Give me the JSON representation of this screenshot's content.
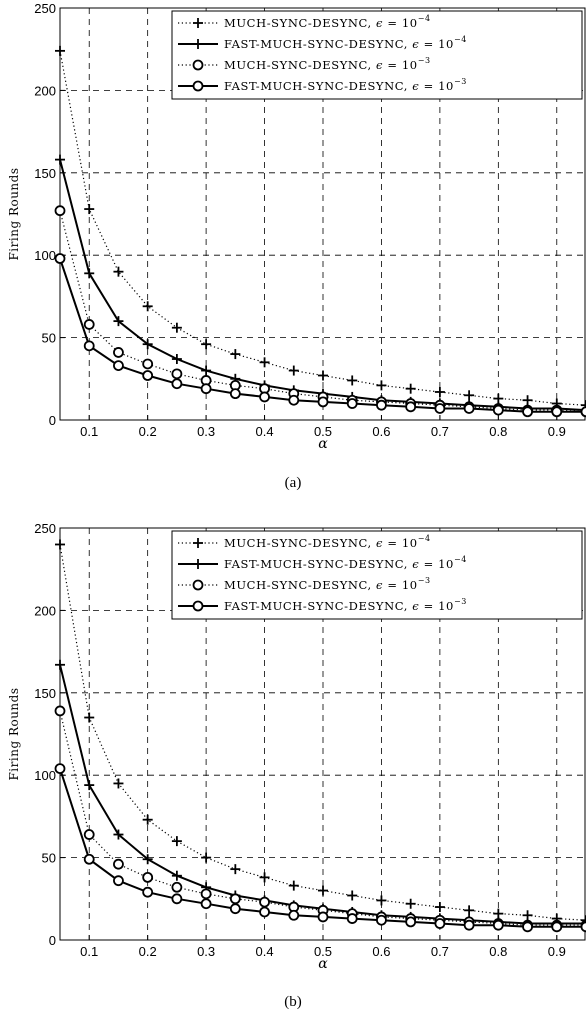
{
  "chart_data": [
    {
      "type": "line",
      "caption": "(a)",
      "xlabel": "α",
      "ylabel": "Firing Rounds",
      "xlim": [
        0.05,
        0.95
      ],
      "ylim": [
        0,
        250
      ],
      "xticks": [
        "0.1",
        "0.2",
        "0.3",
        "0.4",
        "0.5",
        "0.6",
        "0.7",
        "0.8",
        "0.9"
      ],
      "yticks": [
        "0",
        "50",
        "100",
        "150",
        "200",
        "250"
      ],
      "grid": true,
      "legend_position": "top-right",
      "x": [
        0.05,
        0.1,
        0.15,
        0.2,
        0.25,
        0.3,
        0.35,
        0.4,
        0.45,
        0.5,
        0.55,
        0.6,
        0.65,
        0.7,
        0.75,
        0.8,
        0.85,
        0.9,
        0.95
      ],
      "series": [
        {
          "name": "MUCH-SYNC-DESYNC",
          "eps_exp": "−4",
          "marker": "plus",
          "line": "dotted",
          "values": [
            224,
            128,
            90,
            69,
            56,
            46,
            40,
            35,
            30,
            27,
            24,
            21,
            19,
            17,
            15,
            13,
            12,
            10,
            9
          ]
        },
        {
          "name": "FAST-MUCH-SYNC-DESYNC",
          "eps_exp": "−4",
          "marker": "plus",
          "line": "solid",
          "values": [
            158,
            89,
            60,
            46,
            37,
            30,
            25,
            21,
            18,
            16,
            14,
            12,
            11,
            10,
            9,
            8,
            7,
            7,
            6
          ]
        },
        {
          "name": "MUCH-SYNC-DESYNC",
          "eps_exp": "−3",
          "marker": "circle",
          "line": "dotted",
          "values": [
            127,
            58,
            41,
            34,
            28,
            24,
            21,
            19,
            16,
            14,
            12,
            11,
            10,
            9,
            8,
            7,
            6,
            6,
            5
          ]
        },
        {
          "name": "FAST-MUCH-SYNC-DESYNC",
          "eps_exp": "−3",
          "marker": "circle",
          "line": "solid",
          "values": [
            98,
            45,
            33,
            27,
            22,
            19,
            16,
            14,
            12,
            11,
            10,
            9,
            8,
            7,
            7,
            6,
            5,
            5,
            5
          ]
        }
      ]
    },
    {
      "type": "line",
      "caption": "(b)",
      "xlabel": "α",
      "ylabel": "Firing Rounds",
      "xlim": [
        0.05,
        0.95
      ],
      "ylim": [
        0,
        250
      ],
      "xticks": [
        "0.1",
        "0.2",
        "0.3",
        "0.4",
        "0.5",
        "0.6",
        "0.7",
        "0.8",
        "0.9"
      ],
      "yticks": [
        "0",
        "50",
        "100",
        "150",
        "200",
        "250"
      ],
      "grid": true,
      "legend_position": "top-right",
      "x": [
        0.05,
        0.1,
        0.15,
        0.2,
        0.25,
        0.3,
        0.35,
        0.4,
        0.45,
        0.5,
        0.55,
        0.6,
        0.65,
        0.7,
        0.75,
        0.8,
        0.85,
        0.9,
        0.95
      ],
      "series": [
        {
          "name": "MUCH-SYNC-DESYNC",
          "eps_exp": "−4",
          "marker": "plus",
          "line": "dotted",
          "values": [
            240,
            135,
            95,
            73,
            60,
            50,
            43,
            38,
            33,
            30,
            27,
            24,
            22,
            20,
            18,
            16,
            15,
            13,
            12
          ]
        },
        {
          "name": "FAST-MUCH-SYNC-DESYNC",
          "eps_exp": "−4",
          "marker": "plus",
          "line": "solid",
          "values": [
            167,
            94,
            64,
            49,
            39,
            32,
            27,
            24,
            21,
            19,
            17,
            15,
            14,
            13,
            12,
            11,
            10,
            10,
            10
          ]
        },
        {
          "name": "MUCH-SYNC-DESYNC",
          "eps_exp": "−3",
          "marker": "circle",
          "line": "dotted",
          "values": [
            139,
            64,
            46,
            38,
            32,
            28,
            25,
            23,
            20,
            18,
            16,
            14,
            13,
            12,
            11,
            10,
            9,
            9,
            9
          ]
        },
        {
          "name": "FAST-MUCH-SYNC-DESYNC",
          "eps_exp": "−3",
          "marker": "circle",
          "line": "solid",
          "values": [
            104,
            49,
            36,
            29,
            25,
            22,
            19,
            17,
            15,
            14,
            13,
            12,
            11,
            10,
            9,
            9,
            8,
            8,
            8
          ]
        }
      ]
    }
  ]
}
